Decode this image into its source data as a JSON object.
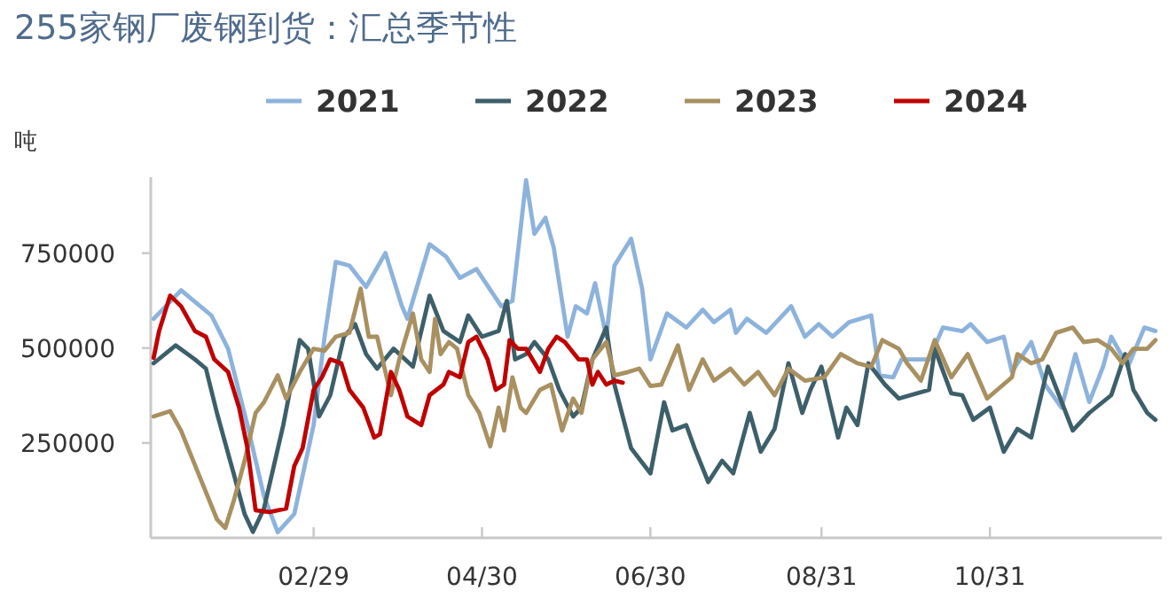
{
  "chart_data": {
    "type": "line",
    "title": "255家钢厂废钢到货：汇总季节性",
    "ylabel": "吨",
    "legend": "top",
    "line_style": "solid",
    "xlim": [
      "--01-01",
      "--12-31"
    ],
    "xticks": [
      {
        "value": "--02-29",
        "label": "02/29"
      },
      {
        "value": "--04-30",
        "label": "04/30"
      },
      {
        "value": "--06-30",
        "label": "06/30"
      },
      {
        "value": "--08-31",
        "label": "08/31"
      },
      {
        "value": "--10-31",
        "label": "10/31"
      }
    ],
    "ylim": [
      0,
      950000
    ],
    "yticks": [
      250000,
      500000,
      750000
    ],
    "series": [
      {
        "name": "2021",
        "color": "#8db3dc",
        "x": [
          "--01-02",
          "--01-12",
          "--01-23",
          "--01-29",
          "--02-05",
          "--02-11",
          "--02-16",
          "--02-22",
          "--02-29",
          "--03-04",
          "--03-08",
          "--03-13",
          "--03-19",
          "--03-26",
          "--04-01",
          "--04-03",
          "--04-11",
          "--04-17",
          "--04-22",
          "--04-28",
          "--05-07",
          "--05-11",
          "--05-16",
          "--05-19",
          "--05-23",
          "--05-26",
          "--05-31",
          "--06-03",
          "--06-07",
          "--06-10",
          "--06-14",
          "--06-17",
          "--06-23",
          "--06-27",
          "--06-30",
          "--07-06",
          "--07-13",
          "--07-19",
          "--07-23",
          "--07-29",
          "--07-31",
          "--08-04",
          "--08-11",
          "--08-20",
          "--08-25",
          "--08-30",
          "--09-04",
          "--09-10",
          "--09-18",
          "--09-21",
          "--09-26",
          "--09-29",
          "--10-09",
          "--10-14",
          "--10-21",
          "--10-24",
          "--10-30",
          "--11-05",
          "--11-08",
          "--11-15",
          "--11-20",
          "--11-26",
          "--12-01",
          "--12-06",
          "--12-11",
          "--12-14",
          "--12-20",
          "--12-26",
          "--12-30"
        ],
        "values": [
          577000,
          652000,
          586000,
          498000,
          297000,
          110000,
          15000,
          63000,
          297000,
          530000,
          727000,
          717000,
          661000,
          750000,
          610000,
          577000,
          773000,
          741000,
          685000,
          708000,
          610000,
          624000,
          942000,
          801000,
          843000,
          764000,
          530000,
          610000,
          591000,
          671000,
          530000,
          717000,
          788000,
          657000,
          470000,
          591000,
          554000,
          601000,
          568000,
          601000,
          540000,
          577000,
          540000,
          610000,
          530000,
          563000,
          530000,
          568000,
          586000,
          428000,
          423000,
          470000,
          470000,
          554000,
          545000,
          563000,
          516000,
          530000,
          437000,
          516000,
          404000,
          343000,
          484000,
          358000,
          451000,
          530000,
          451000,
          554000,
          545000
        ]
      },
      {
        "name": "2022",
        "color": "#3d5f6a",
        "x": [
          "--01-02",
          "--01-10",
          "--01-17",
          "--01-21",
          "--01-25",
          "--01-31",
          "--02-04",
          "--02-07",
          "--02-11",
          "--02-18",
          "--02-24",
          "--02-27",
          "--03-02",
          "--03-06",
          "--03-11",
          "--03-15",
          "--03-19",
          "--03-23",
          "--03-29",
          "--04-05",
          "--04-11",
          "--04-16",
          "--04-22",
          "--04-25",
          "--04-30",
          "--05-06",
          "--05-09",
          "--05-12",
          "--05-16",
          "--05-19",
          "--05-24",
          "--05-28",
          "--06-02",
          "--06-05",
          "--06-09",
          "--06-14",
          "--06-17",
          "--06-23",
          "--06-30",
          "--07-05",
          "--07-08",
          "--07-13",
          "--07-16",
          "--07-21",
          "--07-26",
          "--07-30",
          "--08-05",
          "--08-09",
          "--08-14",
          "--08-19",
          "--08-24",
          "--08-27",
          "--08-31",
          "--09-06",
          "--09-09",
          "--09-13",
          "--09-17",
          "--09-23",
          "--09-28",
          "--10-09",
          "--10-11",
          "--10-17",
          "--10-21",
          "--10-25",
          "--10-31",
          "--11-05",
          "--11-10",
          "--11-15",
          "--11-21",
          "--11-30",
          "--12-06",
          "--12-14",
          "--12-19",
          "--12-22",
          "--12-27",
          "--12-30"
        ],
        "values": [
          460000,
          507000,
          470000,
          446000,
          329000,
          170000,
          63000,
          16000,
          77000,
          297000,
          521000,
          498000,
          320000,
          376000,
          530000,
          563000,
          484000,
          446000,
          498000,
          451000,
          638000,
          545000,
          516000,
          586000,
          530000,
          545000,
          624000,
          470000,
          484000,
          516000,
          470000,
          390000,
          320000,
          343000,
          470000,
          554000,
          404000,
          236000,
          170000,
          357000,
          283000,
          297000,
          236000,
          147000,
          203000,
          170000,
          329000,
          227000,
          287000,
          460000,
          329000,
          390000,
          451000,
          264000,
          343000,
          297000,
          460000,
          404000,
          367000,
          390000,
          498000,
          381000,
          376000,
          311000,
          343000,
          227000,
          287000,
          264000,
          451000,
          283000,
          329000,
          376000,
          484000,
          390000,
          329000,
          311000
        ]
      },
      {
        "name": "2023",
        "color": "#a89060",
        "x": [
          "--01-02",
          "--01-08",
          "--01-12",
          "--01-19",
          "--01-25",
          "--01-28",
          "--01-31",
          "--02-04",
          "--02-08",
          "--02-11",
          "--02-16",
          "--02-19",
          "--02-24",
          "--02-29",
          "--03-04",
          "--03-08",
          "--03-13",
          "--03-17",
          "--03-20",
          "--03-23",
          "--03-28",
          "--03-31",
          "--04-05",
          "--04-08",
          "--04-11",
          "--04-13",
          "--04-15",
          "--04-18",
          "--04-21",
          "--04-25",
          "--04-29",
          "--05-03",
          "--05-06",
          "--05-08",
          "--05-11",
          "--05-14",
          "--05-16",
          "--05-21",
          "--05-25",
          "--05-29",
          "--06-02",
          "--06-05",
          "--06-09",
          "--06-14",
          "--06-17",
          "--06-22",
          "--06-26",
          "--06-30",
          "--07-04",
          "--07-10",
          "--07-14",
          "--07-19",
          "--07-23",
          "--07-29",
          "--08-03",
          "--08-08",
          "--08-14",
          "--08-19",
          "--08-25",
          "--09-01",
          "--09-07",
          "--09-13",
          "--09-18",
          "--09-22",
          "--09-28",
          "--10-01",
          "--10-06",
          "--10-11",
          "--10-17",
          "--10-23",
          "--10-30",
          "--11-08",
          "--11-10",
          "--11-15",
          "--11-19",
          "--11-24",
          "--11-30",
          "--12-04",
          "--12-09",
          "--12-14",
          "--12-18",
          "--12-22",
          "--12-27",
          "--12-30"
        ],
        "values": [
          320000,
          334000,
          282000,
          156000,
          49000,
          26000,
          96000,
          203000,
          329000,
          357000,
          428000,
          367000,
          437000,
          498000,
          493000,
          530000,
          540000,
          657000,
          530000,
          530000,
          376000,
          470000,
          591000,
          470000,
          437000,
          577000,
          484000,
          516000,
          498000,
          376000,
          329000,
          241000,
          343000,
          283000,
          423000,
          343000,
          329000,
          390000,
          404000,
          283000,
          367000,
          329000,
          470000,
          516000,
          428000,
          437000,
          446000,
          400000,
          404000,
          507000,
          390000,
          470000,
          414000,
          446000,
          404000,
          437000,
          376000,
          446000,
          414000,
          423000,
          484000,
          460000,
          451000,
          521000,
          498000,
          460000,
          414000,
          521000,
          423000,
          484000,
          367000,
          423000,
          484000,
          460000,
          470000,
          540000,
          554000,
          516000,
          521000,
          498000,
          460000,
          498000,
          498000,
          521000
        ]
      },
      {
        "name": "2024",
        "color": "#c00000",
        "x": [
          "--01-02",
          "--01-04",
          "--01-08",
          "--01-12",
          "--01-17",
          "--01-21",
          "--01-24",
          "--01-29",
          "--02-02",
          "--02-05",
          "--02-08",
          "--02-13",
          "--02-19",
          "--02-22",
          "--02-25",
          "--02-29",
          "--03-03",
          "--03-06",
          "--03-10",
          "--03-13",
          "--03-18",
          "--03-22",
          "--03-24",
          "--03-28",
          "--03-31",
          "--04-03",
          "--04-08",
          "--04-11",
          "--04-16",
          "--04-18",
          "--04-22",
          "--04-25",
          "--04-28",
          "--05-02",
          "--05-05",
          "--05-08",
          "--05-10",
          "--05-13",
          "--05-16",
          "--05-21",
          "--05-24",
          "--05-27",
          "--05-30",
          "--06-04",
          "--06-07",
          "--06-09",
          "--06-11",
          "--06-14",
          "--06-17",
          "--06-20"
        ],
        "values": [
          474000,
          545000,
          638000,
          610000,
          545000,
          530000,
          470000,
          437000,
          343000,
          236000,
          73000,
          68000,
          77000,
          189000,
          236000,
          390000,
          423000,
          470000,
          460000,
          390000,
          343000,
          264000,
          273000,
          437000,
          390000,
          320000,
          297000,
          376000,
          404000,
          437000,
          423000,
          516000,
          530000,
          470000,
          390000,
          404000,
          521000,
          498000,
          498000,
          437000,
          498000,
          530000,
          516000,
          470000,
          470000,
          404000,
          437000,
          404000,
          414000,
          409000
        ]
      }
    ]
  }
}
